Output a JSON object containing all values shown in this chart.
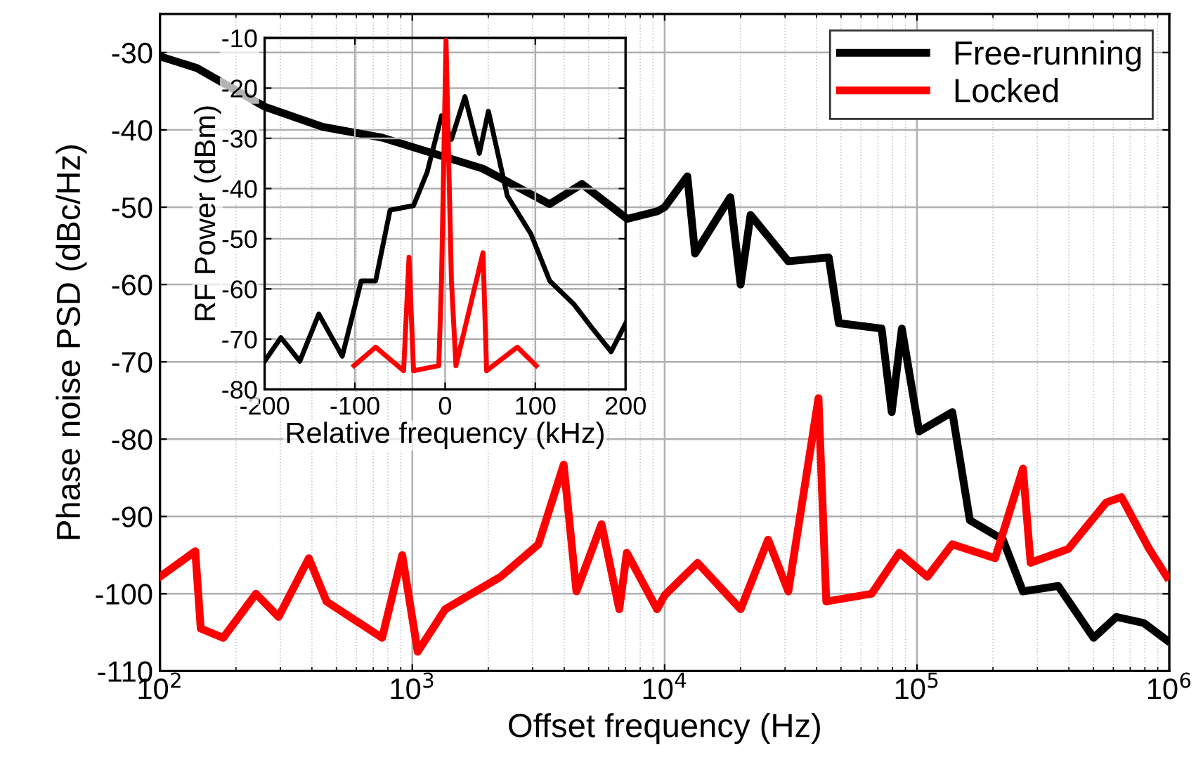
{
  "chart_data": [
    {
      "type": "line",
      "xlabel": "Offset frequency (Hz)",
      "ylabel": "Phase noise PSD (dBc/Hz)",
      "log": "x",
      "xlim": [
        100,
        1000000
      ],
      "ylim": [
        -110,
        -25
      ],
      "xticks": [
        {
          "value": 100,
          "label": "10$^{2}$"
        },
        {
          "value": 1000,
          "label": "10$^{3}$"
        },
        {
          "value": 10000,
          "label": "10$^{4}$"
        },
        {
          "value": 100000,
          "label": "10$^{5}$"
        },
        {
          "value": 1000000,
          "label": "10$^{6}$"
        }
      ],
      "yticks": [
        -110,
        -100,
        -90,
        -80,
        -70,
        -60,
        -50,
        -40,
        -30
      ],
      "grid": true,
      "legend": "top right",
      "series": [
        {
          "name": "Free-running",
          "color": "#000000",
          "x": [
            100,
            140,
            260,
            440,
            760,
            1200,
            1900,
            3500,
            4700,
            7100,
            9400,
            10000,
            12300,
            13200,
            18200,
            20000,
            21900,
            30900,
            44700,
            49000,
            72400,
            79400,
            87100,
            102000,
            138000,
            162000,
            219000,
            263000,
            363000,
            501000,
            617000,
            794000,
            977000
          ],
          "values": [
            -30.5,
            -32,
            -37,
            -39.6,
            -41,
            -43,
            -45,
            -49.6,
            -47,
            -51.5,
            -50.5,
            -50,
            -46,
            -56,
            -48.7,
            -60,
            -51,
            -57,
            -56.5,
            -65,
            -65.7,
            -76.5,
            -65.7,
            -79,
            -76.5,
            -90.5,
            -93,
            -99.7,
            -99,
            -105.7,
            -103,
            -103.8,
            -106
          ]
        },
        {
          "name": "Locked",
          "color": "#ff0000",
          "x": [
            100,
            138,
            145,
            178,
            240,
            295,
            389,
            457,
            759,
            912,
            1050,
            1350,
            2240,
            3160,
            3980,
            4470,
            5620,
            6610,
            7080,
            9330,
            10000,
            13500,
            20000,
            25700,
            30900,
            40700,
            43700,
            66100,
            85100,
            110000,
            138000,
            204000,
            263000,
            282000,
            398000,
            562000,
            646000,
            832000,
            977000
          ],
          "values": [
            -97.8,
            -94.5,
            -104.5,
            -105.7,
            -100,
            -103,
            -95.4,
            -101,
            -105.7,
            -95,
            -107.5,
            -102,
            -97.8,
            -93.6,
            -83.3,
            -99.7,
            -91,
            -102,
            -94.7,
            -102,
            -100.2,
            -96,
            -102,
            -93,
            -99.7,
            -74.7,
            -101,
            -100,
            -94.7,
            -97.8,
            -93.6,
            -95.4,
            -83.8,
            -96,
            -94.2,
            -88.2,
            -87.5,
            -94.2,
            -97.8
          ]
        }
      ]
    },
    {
      "type": "line",
      "xlabel": "Relative frequency (kHz)",
      "ylabel": "RF Power (dBm)",
      "xlim": [
        -200,
        200
      ],
      "ylim": [
        -80,
        -10
      ],
      "xticks": [
        -200,
        -100,
        0,
        100,
        200
      ],
      "yticks": [
        -80,
        -70,
        -60,
        -50,
        -40,
        -30,
        -20,
        -10
      ],
      "grid": true,
      "series": [
        {
          "color": "#000000",
          "x": [
            -200,
            -182,
            -161,
            -140,
            -114,
            -93,
            -77,
            -61,
            -35,
            -20,
            -4,
            7,
            22,
            38,
            48,
            69,
            95,
            116,
            143,
            163,
            184,
            200
          ],
          "values": [
            -74.4,
            -69.7,
            -74.4,
            -65,
            -73.4,
            -58.4,
            -58.4,
            -44.3,
            -43.4,
            -36.8,
            -25.5,
            -30.2,
            -21.7,
            -33,
            -24.6,
            -41.5,
            -49,
            -58.4,
            -63.1,
            -67.8,
            -72.5,
            -66.9
          ]
        },
        {
          "color": "#ff0000",
          "x": [
            -101,
            -77,
            -46,
            -40,
            -35,
            -7,
            -4,
            1,
            7,
            12,
            42,
            46,
            80,
            101
          ],
          "values": [
            -75.3,
            -71.6,
            -76.3,
            -53.7,
            -76.3,
            -75.3,
            -58.4,
            -10.5,
            -58.4,
            -75.3,
            -52.8,
            -76.3,
            -71.6,
            -75.3
          ]
        }
      ]
    }
  ]
}
